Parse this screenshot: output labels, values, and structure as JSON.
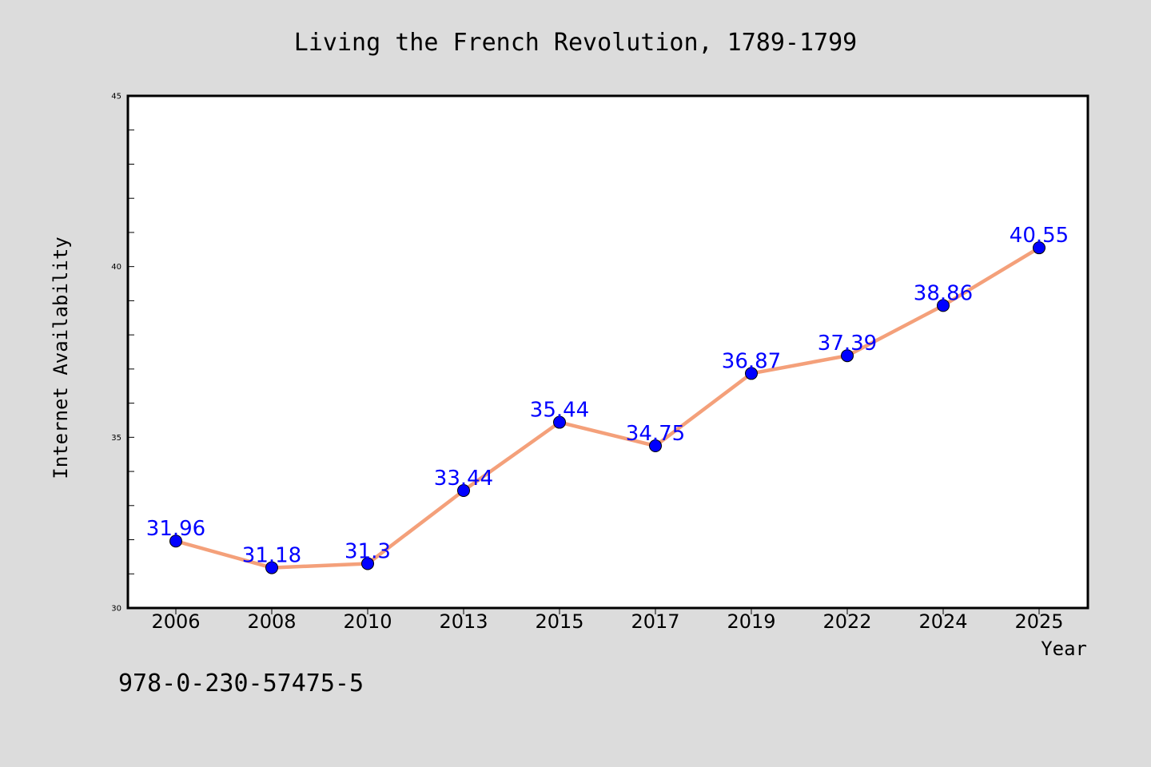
{
  "chart_data": {
    "type": "line",
    "title": "Living the French Revolution, 1789-1799",
    "xlabel": "Year",
    "ylabel": "Internet Availability",
    "categories": [
      "2006",
      "2008",
      "2010",
      "2013",
      "2015",
      "2017",
      "2019",
      "2022",
      "2024",
      "2025"
    ],
    "series": [
      {
        "values": [
          31.96,
          31.18,
          31.3,
          33.44,
          35.44,
          34.75,
          36.87,
          37.39,
          38.86,
          40.55
        ],
        "labels": [
          "31.96",
          "31.18",
          "31.3",
          "33.44",
          "35.44",
          "34.75",
          "36.87",
          "37.39",
          "38.86",
          "40.55"
        ],
        "line_color": "#f4a07a",
        "marker_color": "#0000ff"
      }
    ],
    "ylim": [
      30,
      45
    ],
    "y_ticks": [
      "30",
      "35",
      "40",
      "45"
    ],
    "y_minor_step": 1,
    "grid": false,
    "legend": "none",
    "label_color": "#0000ff"
  },
  "footnote": "978-0-230-57475-5",
  "colors": {
    "background": "#dcdcdc",
    "plot_background": "#ffffff"
  }
}
